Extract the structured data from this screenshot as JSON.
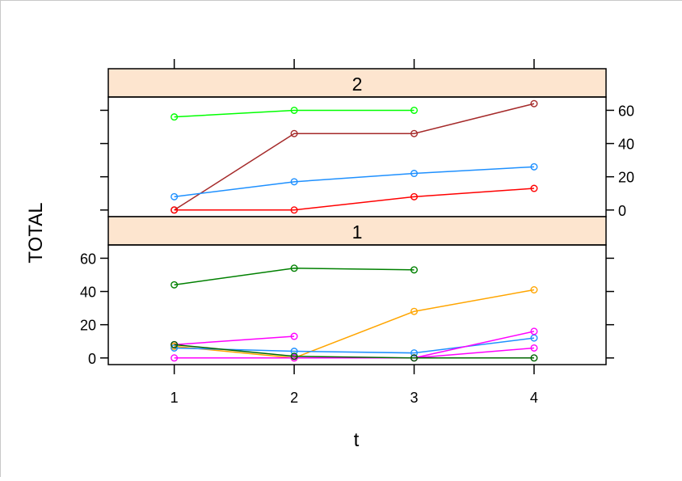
{
  "chart_data": {
    "type": "line",
    "subtype": "lattice-xyplot",
    "xlabel": "t",
    "ylabel": "TOTAL",
    "x_ticks": [
      1,
      2,
      3,
      4
    ],
    "xlim": [
      0.45,
      4.6
    ],
    "grid": false,
    "colors": {
      "strip_fill": "#fde5cf",
      "frame": "#000000"
    },
    "panels": [
      {
        "strip_label": "2",
        "ylim": [
          -4,
          68
        ],
        "y_ticks": [
          0,
          20,
          40,
          60
        ],
        "series": [
          {
            "color": "#00ff00",
            "x": [
              1,
              2,
              3
            ],
            "y": [
              56,
              60,
              60
            ]
          },
          {
            "color": "#a52a2a",
            "x": [
              1,
              2,
              3,
              4
            ],
            "y": [
              0,
              46,
              46,
              64
            ]
          },
          {
            "color": "#1e90ff",
            "x": [
              1,
              2,
              3,
              4
            ],
            "y": [
              8,
              17,
              22,
              26
            ]
          },
          {
            "color": "#ff0000",
            "x": [
              1,
              2,
              3,
              4
            ],
            "y": [
              0,
              0,
              8,
              13
            ]
          }
        ]
      },
      {
        "strip_label": "1",
        "ylim": [
          -4,
          68
        ],
        "y_ticks": [
          0,
          20,
          40,
          60
        ],
        "series": [
          {
            "color": "#008000",
            "x": [
              1,
              2,
              3
            ],
            "y": [
              44,
              54,
              53
            ]
          },
          {
            "color": "#ffa500",
            "x": [
              1,
              2,
              3,
              4
            ],
            "y": [
              7,
              0,
              28,
              41
            ]
          },
          {
            "color": "#ff00ff",
            "x": [
              1,
              2
            ],
            "y": [
              8,
              13
            ]
          },
          {
            "color": "#1e90ff",
            "x": [
              1,
              2,
              3,
              4
            ],
            "y": [
              6,
              4,
              3,
              12
            ]
          },
          {
            "color": "#ff00ff",
            "x": [
              1,
              2,
              3,
              4
            ],
            "y": [
              0,
              0,
              0,
              6
            ]
          },
          {
            "color": "#ff00ff",
            "x": [
              3,
              4
            ],
            "y": [
              0,
              16
            ]
          },
          {
            "color": "#006400",
            "x": [
              1,
              2,
              3,
              4
            ],
            "y": [
              8,
              1,
              0,
              0
            ]
          }
        ]
      }
    ]
  }
}
